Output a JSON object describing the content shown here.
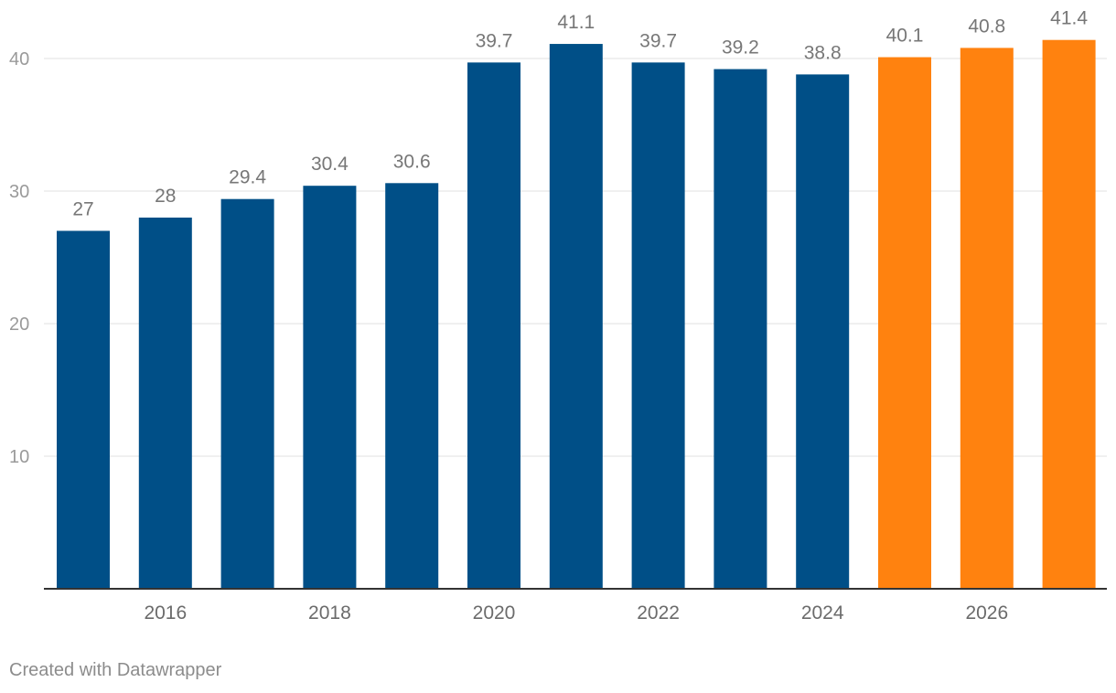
{
  "chart_data": {
    "type": "bar",
    "title": "",
    "xlabel": "",
    "ylabel": "",
    "categories": [
      "2015",
      "2016",
      "2017",
      "2018",
      "2019",
      "2020",
      "2021",
      "2022",
      "2023",
      "2024",
      "2025",
      "2026",
      "2027"
    ],
    "values": [
      27,
      28,
      29.4,
      30.4,
      30.6,
      39.7,
      41.1,
      39.7,
      39.2,
      38.8,
      40.1,
      40.8,
      41.4
    ],
    "value_labels": [
      "27",
      "28",
      "29.4",
      "30.4",
      "30.6",
      "39.7",
      "41.1",
      "39.7",
      "39.2",
      "38.8",
      "40.1",
      "40.8",
      "41.4"
    ],
    "x_tick_labels": [
      "2016",
      "2018",
      "2020",
      "2022",
      "2024",
      "2026"
    ],
    "y_ticks": [
      10,
      20,
      30,
      40
    ],
    "y_tick_labels": [
      "10",
      "20",
      "30",
      "40"
    ],
    "ylim": [
      0,
      41.4
    ],
    "grid": true,
    "series_colors": {
      "actual": "#004f87",
      "forecast": "#ff820f"
    },
    "forecast_from": "2025"
  },
  "footer": {
    "credit": "Created with Datawrapper"
  }
}
